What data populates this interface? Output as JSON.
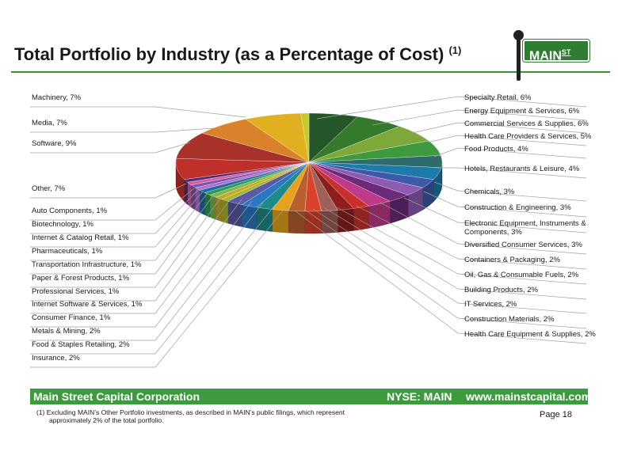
{
  "header": {
    "title": "Total Portfolio by Industry (as a Percentage of Cost)",
    "title_note": "(1)",
    "logo_text": "MAIN",
    "logo_superscript": "ST"
  },
  "chart_data": {
    "type": "pie",
    "title": "Total Portfolio by Industry (as a Percentage of Cost)",
    "unit": "%",
    "slices": [
      {
        "label": "Specialty Retail, 6%",
        "name": "Specialty Retail",
        "value": 6,
        "color": "#24562a"
      },
      {
        "label": "Energy Equipment & Services, 6%",
        "name": "Energy Equipment & Services",
        "value": 6,
        "color": "#357a2c"
      },
      {
        "label": "Commercial Services & Supplies, 6%",
        "name": "Commercial Services & Supplies",
        "value": 6,
        "color": "#7fa83a"
      },
      {
        "label": "Health Care Providers & Services, 5%",
        "name": "Health Care Providers & Services",
        "value": 5,
        "color": "#3f9a3f"
      },
      {
        "label": "Food Products, 4%",
        "name": "Food Products",
        "value": 4,
        "color": "#2e6b6b"
      },
      {
        "label": "Hotels, Restaurants & Leisure, 4%",
        "name": "Hotels, Restaurants & Leisure",
        "value": 4,
        "color": "#1e7aa8"
      },
      {
        "label": "Chemicals, 3%",
        "name": "Chemicals",
        "value": 3,
        "color": "#3d5aa8"
      },
      {
        "label": "Construction & Engineering, 3%",
        "name": "Construction & Engineering",
        "value": 3,
        "color": "#8e5bb3"
      },
      {
        "label": "Electronic Equipment, Instruments & Components, 3%",
        "name": "Electronic Equipment, Instruments & Components",
        "value": 3,
        "color": "#6b2a7a"
      },
      {
        "label": "Diversified Consumer Services, 3%",
        "name": "Diversified Consumer Services",
        "value": 3,
        "color": "#c03a8a"
      },
      {
        "label": "Containers & Packaging, 2%",
        "name": "Containers & Packaging",
        "value": 2,
        "color": "#c9302c"
      },
      {
        "label": "Oil, Gas & Consumable Fuels, 2%",
        "name": "Oil, Gas & Consumable Fuels",
        "value": 2,
        "color": "#8e1e1e"
      },
      {
        "label": "Building Products, 2%",
        "name": "Building Products",
        "value": 2,
        "color": "#a0605a"
      },
      {
        "label": "IT Services, 2%",
        "name": "IT Services",
        "value": 2,
        "color": "#d9432b"
      },
      {
        "label": "Construction Materials, 2%",
        "name": "Construction Materials",
        "value": 2,
        "color": "#b9602f"
      },
      {
        "label": "Health Care Equipment & Supplies, 2%",
        "name": "Health Care Equipment & Supplies",
        "value": 2,
        "color": "#e6a21c"
      },
      {
        "label": "Insurance, 2%",
        "name": "Insurance",
        "value": 2,
        "color": "#1f8a8a"
      },
      {
        "label": "Food & Staples Retailing, 2%",
        "name": "Food & Staples Retailing",
        "value": 2,
        "color": "#2b78c2"
      },
      {
        "label": "Metals & Mining, 2%",
        "name": "Metals & Mining",
        "value": 2,
        "color": "#5a5aa8"
      },
      {
        "label": "Consumer Finance, 1%",
        "name": "Consumer Finance",
        "value": 1,
        "color": "#a8b82a"
      },
      {
        "label": "Internet Software & Services, 1%",
        "name": "Internet Software & Services",
        "value": 1,
        "color": "#c8a82a"
      },
      {
        "label": "Professional Services, 1%",
        "name": "Professional Services",
        "value": 1,
        "color": "#7ab84a"
      },
      {
        "label": "Paper & Forest Products, 1%",
        "name": "Paper & Forest Products",
        "value": 1,
        "color": "#2e9a5a"
      },
      {
        "label": "Transportation Infrastructure, 1%",
        "name": "Transportation Infrastructure",
        "value": 1,
        "color": "#1e6aa8"
      },
      {
        "label": "Pharmaceuticals, 1%",
        "name": "Pharmaceuticals",
        "value": 1,
        "color": "#b070c8"
      },
      {
        "label": "Internet & Catalog Retail, 1%",
        "name": "Internet & Catalog Retail",
        "value": 1,
        "color": "#8050b0"
      },
      {
        "label": "Biotechnology, 1%",
        "name": "Biotechnology",
        "value": 1,
        "color": "#d060a0"
      },
      {
        "label": "Auto Components, 1%",
        "name": "Auto Components",
        "value": 1,
        "color": "#5a2a7a"
      },
      {
        "label": "Other, 7%",
        "name": "Other",
        "value": 7,
        "color": "#c0302a"
      },
      {
        "label": "Software, 9%",
        "name": "Software",
        "value": 9,
        "color": "#a8322a"
      },
      {
        "label": "Media, 7%",
        "name": "Media",
        "value": 7,
        "color": "#d9822a"
      },
      {
        "label": "Machinery, 7%",
        "name": "Machinery",
        "value": 7,
        "color": "#e0b020"
      }
    ],
    "extra_slice_color": "#c8c82a",
    "labels_right": [
      "Specialty Retail, 6%",
      "Energy Equipment & Services, 6%",
      "Commercial Services & Supplies, 6%",
      "Health Care Providers & Services, 5%",
      "Food Products, 4%",
      "Hotels, Restaurants & Leisure, 4%",
      "Chemicals, 3%",
      "Construction & Engineering, 3%",
      "Electronic Equipment, Instruments &|Components, 3%",
      "Diversified Consumer Services, 3%",
      "Containers & Packaging, 2%",
      "Oil, Gas & Consumable Fuels, 2%",
      "Building Products, 2%",
      "IT Services, 2%",
      "Construction Materials, 2%",
      "Health Care Equipment & Supplies, 2%"
    ],
    "labels_left": [
      "Machinery, 7%",
      "Media, 7%",
      "Software, 9%",
      "Other, 7%",
      "Auto Components, 1%",
      "Biotechnology, 1%",
      "Internet & Catalog Retail, 1%",
      "Pharmaceuticals, 1%",
      "Transportation Infrastructure, 1%",
      "Paper & Forest Products, 1%",
      "Professional Services, 1%",
      "Internet Software & Services, 1%",
      "Consumer Finance, 1%",
      "Metals & Mining, 2%",
      "Food & Staples Retailing, 2%",
      "Insurance, 2%"
    ]
  },
  "footer": {
    "company": "Main Street Capital Corporation",
    "ticker": "NYSE: MAIN",
    "website": "www.mainstcapital.com",
    "footnote_line1": "(1) Excluding MAIN’s Other Portfolio investments, as described in MAIN’s public filings, which represent",
    "footnote_line2": "approximately 2% of the total portfolio.",
    "page": "Page 18"
  },
  "colors": {
    "brand_green": "#3e9a3e",
    "rule_green": "#3a8f3a"
  }
}
